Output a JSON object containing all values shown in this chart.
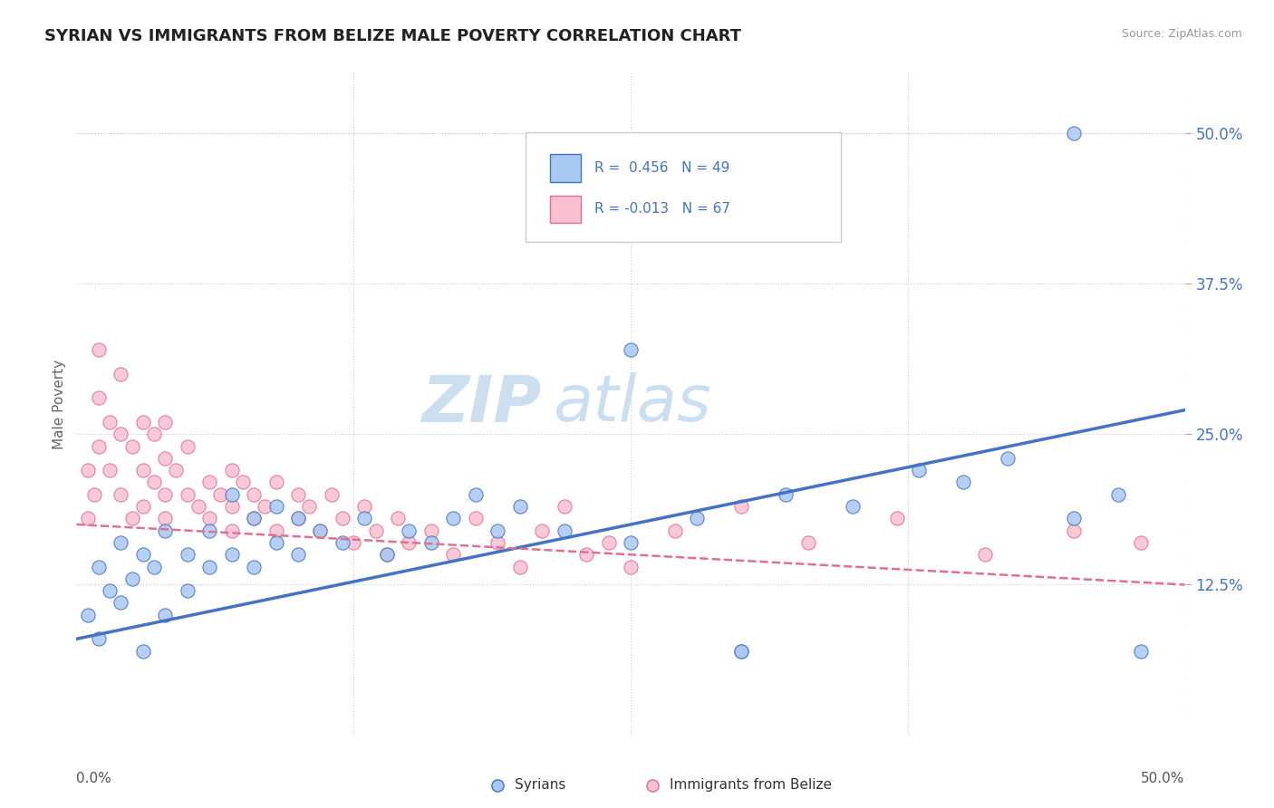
{
  "title": "SYRIAN VS IMMIGRANTS FROM BELIZE MALE POVERTY CORRELATION CHART",
  "source": "Source: ZipAtlas.com",
  "ylabel": "Male Poverty",
  "watermark_zip": "ZIP",
  "watermark_atlas": "atlas",
  "legend_text1": "R =  0.456   N = 49",
  "legend_text2": "R = -0.013   N = 67",
  "legend_label1": "Syrians",
  "legend_label2": "Immigrants from Belize",
  "ytick_labels": [
    "12.5%",
    "25.0%",
    "37.5%",
    "50.0%"
  ],
  "ytick_values": [
    0.125,
    0.25,
    0.375,
    0.5
  ],
  "xlim": [
    0.0,
    0.5
  ],
  "ylim": [
    0.0,
    0.55
  ],
  "color_syrian_fill": "#A8C8F0",
  "color_syrian_edge": "#4472C4",
  "color_belize_fill": "#F8C0D0",
  "color_belize_edge": "#E07090",
  "color_line_syrian": "#4472C4",
  "color_line_belize": "#E07090",
  "syrian_line_x0": 0.0,
  "syrian_line_y0": 0.08,
  "syrian_line_x1": 0.5,
  "syrian_line_y1": 0.27,
  "belize_line_x0": 0.0,
  "belize_line_y0": 0.175,
  "belize_line_x1": 0.5,
  "belize_line_y1": 0.125,
  "syrian_x": [
    0.005,
    0.01,
    0.01,
    0.015,
    0.02,
    0.02,
    0.025,
    0.03,
    0.03,
    0.035,
    0.04,
    0.04,
    0.05,
    0.05,
    0.06,
    0.06,
    0.07,
    0.07,
    0.08,
    0.08,
    0.09,
    0.09,
    0.1,
    0.1,
    0.11,
    0.12,
    0.13,
    0.14,
    0.15,
    0.16,
    0.17,
    0.18,
    0.19,
    0.2,
    0.22,
    0.25,
    0.28,
    0.3,
    0.32,
    0.35,
    0.38,
    0.4,
    0.42,
    0.45,
    0.47,
    0.48,
    0.25,
    0.3,
    0.45
  ],
  "syrian_y": [
    0.1,
    0.14,
    0.08,
    0.12,
    0.11,
    0.16,
    0.13,
    0.15,
    0.07,
    0.14,
    0.1,
    0.17,
    0.12,
    0.15,
    0.14,
    0.17,
    0.15,
    0.2,
    0.14,
    0.18,
    0.16,
    0.19,
    0.15,
    0.18,
    0.17,
    0.16,
    0.18,
    0.15,
    0.17,
    0.16,
    0.18,
    0.2,
    0.17,
    0.19,
    0.17,
    0.16,
    0.18,
    0.07,
    0.2,
    0.19,
    0.22,
    0.21,
    0.23,
    0.18,
    0.2,
    0.07,
    0.32,
    0.07,
    0.5
  ],
  "belize_x": [
    0.005,
    0.005,
    0.008,
    0.01,
    0.01,
    0.01,
    0.015,
    0.015,
    0.02,
    0.02,
    0.02,
    0.025,
    0.025,
    0.03,
    0.03,
    0.03,
    0.035,
    0.035,
    0.04,
    0.04,
    0.04,
    0.04,
    0.045,
    0.05,
    0.05,
    0.055,
    0.06,
    0.06,
    0.065,
    0.07,
    0.07,
    0.07,
    0.075,
    0.08,
    0.08,
    0.085,
    0.09,
    0.09,
    0.1,
    0.1,
    0.105,
    0.11,
    0.115,
    0.12,
    0.125,
    0.13,
    0.135,
    0.14,
    0.145,
    0.15,
    0.16,
    0.17,
    0.18,
    0.19,
    0.2,
    0.21,
    0.22,
    0.23,
    0.24,
    0.25,
    0.27,
    0.3,
    0.33,
    0.37,
    0.41,
    0.45,
    0.48
  ],
  "belize_y": [
    0.18,
    0.22,
    0.2,
    0.28,
    0.24,
    0.32,
    0.26,
    0.22,
    0.3,
    0.25,
    0.2,
    0.24,
    0.18,
    0.22,
    0.26,
    0.19,
    0.21,
    0.25,
    0.2,
    0.23,
    0.18,
    0.26,
    0.22,
    0.2,
    0.24,
    0.19,
    0.21,
    0.18,
    0.2,
    0.22,
    0.19,
    0.17,
    0.21,
    0.18,
    0.2,
    0.19,
    0.17,
    0.21,
    0.18,
    0.2,
    0.19,
    0.17,
    0.2,
    0.18,
    0.16,
    0.19,
    0.17,
    0.15,
    0.18,
    0.16,
    0.17,
    0.15,
    0.18,
    0.16,
    0.14,
    0.17,
    0.19,
    0.15,
    0.16,
    0.14,
    0.17,
    0.19,
    0.16,
    0.18,
    0.15,
    0.17,
    0.16
  ]
}
